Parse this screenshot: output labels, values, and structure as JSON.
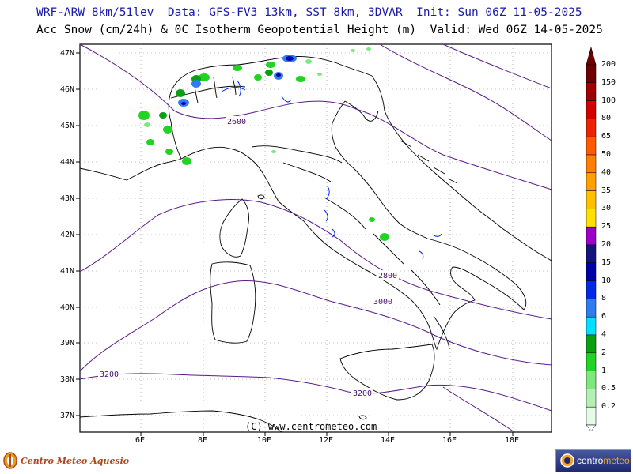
{
  "header": {
    "line1": "WRF-ARW 8km/51lev  Data: GFS-FV3 13km, SST 8km, 3DVAR  Init: Sun 06Z 11-05-2025",
    "line2": "Acc Snow (cm/24h) & 0C Isotherm Geopotential Height (m)  Valid: Wed 06Z 14-05-2025"
  },
  "map": {
    "lat_labels": [
      "47N",
      "46N",
      "45N",
      "44N",
      "43N",
      "42N",
      "41N",
      "40N",
      "39N",
      "38N",
      "37N"
    ],
    "lon_labels": [
      "6E",
      "8E",
      "10E",
      "12E",
      "14E",
      "16E",
      "18E"
    ],
    "contour_labels": [
      "2600",
      "2800",
      "3000",
      "3200",
      "3200"
    ],
    "credit": "(C) www.centrometeo.com"
  },
  "colorbar": {
    "labels": [
      "200",
      "150",
      "100",
      "80",
      "65",
      "50",
      "40",
      "35",
      "30",
      "25",
      "20",
      "15",
      "10",
      "8",
      "6",
      "4",
      "2",
      "1",
      "0.5",
      "0.2"
    ],
    "colors": [
      "#6e0000",
      "#a00000",
      "#d20000",
      "#ee2200",
      "#ff5a00",
      "#ff7f00",
      "#ffa000",
      "#ffc000",
      "#ffe000",
      "#9b00c8",
      "#14147a",
      "#0000a8",
      "#0028e6",
      "#2e7cf0",
      "#00e0ff",
      "#0aa012",
      "#22d422",
      "#7ee87e",
      "#b4f0b4",
      "#e4fbe4"
    ],
    "arrow_color": "#6e0000"
  },
  "logos": {
    "left_text": "Centro Meteo Aquesio",
    "right_text_a": "centro",
    "right_text_b": "meteo"
  }
}
